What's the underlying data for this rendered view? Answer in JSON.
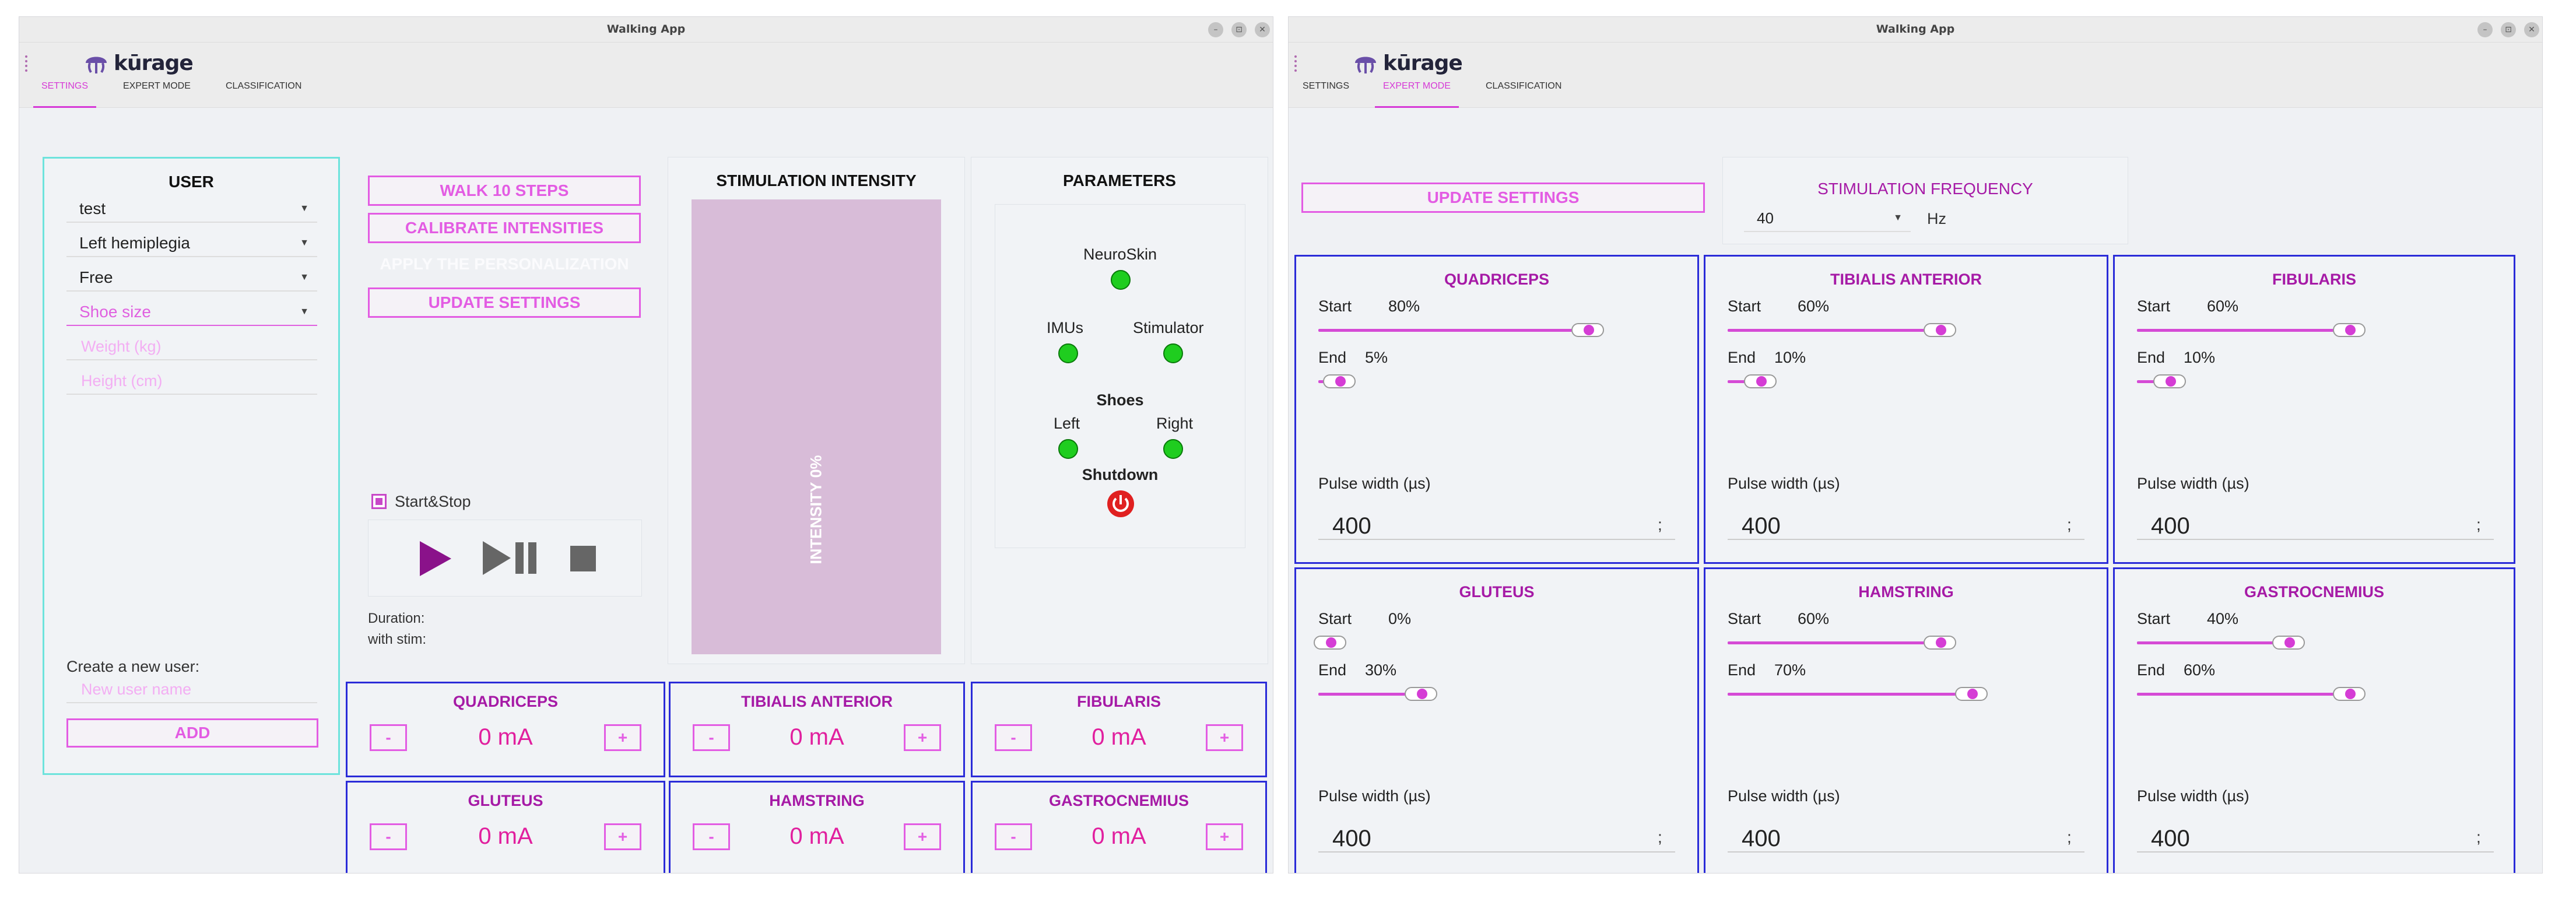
{
  "window_title": "Walking App",
  "brand": "kūrage",
  "tabs": [
    "SETTINGS",
    "EXPERT MODE",
    "CLASSIFICATION"
  ],
  "win_buttons": [
    "–",
    "⊡",
    "✕"
  ],
  "user": {
    "title": "USER",
    "user_select": "test",
    "condition_select": "Left hemiplegia",
    "mode_select": "Free",
    "shoe_select": "Shoe size",
    "weight_placeholder": "Weight (kg)",
    "height_placeholder": "Height (cm)",
    "create_label": "Create a new user:",
    "new_user_placeholder": "New user name",
    "add_label": "ADD"
  },
  "actions": {
    "walk": "WALK 10 STEPS",
    "calibrate": "CALIBRATE INTENSITIES",
    "apply": "APPLY THE PERSONALIZATION",
    "update": "UPDATE SETTINGS",
    "startstop": "Start&Stop",
    "duration": "Duration:",
    "with_stim": "with stim:"
  },
  "stim": {
    "title": "STIMULATION INTENSITY",
    "bar_label": "INTENSITY 0%",
    "level": 0
  },
  "params": {
    "title": "PARAMETERS",
    "neuroskin": "NeuroSkin",
    "imus": "IMUs",
    "stimulator": "Stimulator",
    "shoes": "Shoes",
    "left": "Left",
    "right": "Right",
    "shutdown": "Shutdown"
  },
  "muscles": [
    {
      "name": "QUADRICEPS",
      "value": "0 mA"
    },
    {
      "name": "TIBIALIS ANTERIOR",
      "value": "0 mA"
    },
    {
      "name": "FIBULARIS",
      "value": "0 mA"
    },
    {
      "name": "GLUTEUS",
      "value": "0 mA"
    },
    {
      "name": "HAMSTRING",
      "value": "0 mA"
    },
    {
      "name": "GASTROCNEMIUS",
      "value": "0 mA"
    }
  ],
  "minus": "-",
  "plus": "+",
  "expert": {
    "update": "UPDATE SETTINGS",
    "freq_title": "STIMULATION FREQUENCY",
    "freq_value": "40",
    "freq_unit": "Hz",
    "start_label": "Start",
    "end_label": "End",
    "pw_label": "Pulse width (µs)",
    "pw_sep": ";",
    "muscles": [
      {
        "name": "QUADRICEPS",
        "start": "80%",
        "end": "5%",
        "pw": "400"
      },
      {
        "name": "TIBIALIS ANTERIOR",
        "start": "60%",
        "end": "10%",
        "pw": "400"
      },
      {
        "name": "FIBULARIS",
        "start": "60%",
        "end": "10%",
        "pw": "400"
      },
      {
        "name": "GLUTEUS",
        "start": "0%",
        "end": "30%",
        "pw": "400"
      },
      {
        "name": "HAMSTRING",
        "start": "60%",
        "end": "70%",
        "pw": "400"
      },
      {
        "name": "GASTROCNEMIUS",
        "start": "40%",
        "end": "60%",
        "pw": "400"
      }
    ]
  },
  "colors": {
    "accent": "#e35ce3",
    "muscle_title": "#a61aa6",
    "panel_border": "#2a2bd8",
    "user_border": "#6de3dc",
    "led_on": "#1fcd1f",
    "shutdown": "#e02020",
    "stim_bar": "#d8bcd8"
  },
  "icons": [
    "jellyfish-logo-icon",
    "dropdown-arrow-icon",
    "play-icon",
    "play-pause-icon",
    "stop-icon",
    "power-icon",
    "checkbox-icon"
  ]
}
